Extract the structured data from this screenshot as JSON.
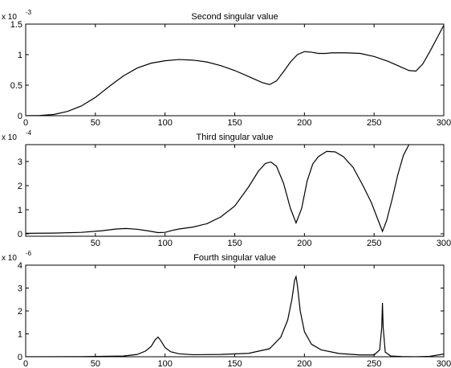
{
  "chart_data": [
    {
      "type": "line",
      "title": "Second singular value",
      "multiplier": {
        "base": "x 10",
        "exponent": "-3"
      },
      "xlabel": "",
      "ylabel": "",
      "xlim": [
        0,
        300
      ],
      "ylim": [
        0,
        1.5
      ],
      "xticks": [
        0,
        50,
        100,
        150,
        200,
        250,
        300
      ],
      "yticks": [
        0,
        0.5,
        1,
        1.5
      ],
      "xtick_labels": [
        "0",
        "50",
        "100",
        "150",
        "200",
        "250",
        "300"
      ],
      "ytick_labels": [
        "0",
        "0.5",
        "1",
        "1.5"
      ],
      "grid": false,
      "series": [
        {
          "x": [
            0,
            10,
            20,
            30,
            40,
            50,
            60,
            70,
            80,
            90,
            100,
            110,
            120,
            130,
            140,
            150,
            160,
            170,
            175,
            180,
            185,
            190,
            195,
            200,
            205,
            210,
            215,
            220,
            230,
            240,
            250,
            260,
            270,
            275,
            280,
            285,
            290,
            300
          ],
          "y": [
            0,
            0.003,
            0.02,
            0.07,
            0.16,
            0.3,
            0.48,
            0.65,
            0.78,
            0.86,
            0.9,
            0.92,
            0.91,
            0.88,
            0.82,
            0.74,
            0.64,
            0.54,
            0.51,
            0.57,
            0.72,
            0.88,
            1.0,
            1.05,
            1.04,
            1.02,
            1.02,
            1.03,
            1.03,
            1.02,
            0.97,
            0.89,
            0.79,
            0.74,
            0.73,
            0.85,
            1.05,
            1.48
          ]
        }
      ]
    },
    {
      "type": "line",
      "title": "Third singular value",
      "multiplier": {
        "base": "x 10",
        "exponent": "-4"
      },
      "xlabel": "",
      "ylabel": "",
      "xlim": [
        0,
        300
      ],
      "ylim": [
        -0.1,
        3.7
      ],
      "xticks": [
        50,
        100,
        150,
        200,
        250,
        300
      ],
      "yticks": [
        0,
        1,
        2,
        3
      ],
      "xtick_labels": [
        "50",
        "100",
        "150",
        "200",
        "250",
        "300"
      ],
      "ytick_labels": [
        "0",
        "1",
        "2",
        "3"
      ],
      "grid": false,
      "series": [
        {
          "x": [
            0,
            20,
            40,
            55,
            65,
            72,
            80,
            88,
            95,
            100,
            105,
            110,
            120,
            130,
            140,
            150,
            160,
            167,
            172,
            176,
            180,
            185,
            190,
            194,
            198,
            202,
            206,
            210,
            216,
            222,
            228,
            235,
            242,
            248,
            253,
            256,
            259,
            263,
            267,
            271,
            275
          ],
          "y": [
            0.02,
            0.03,
            0.06,
            0.13,
            0.2,
            0.22,
            0.19,
            0.12,
            0.05,
            0.06,
            0.14,
            0.2,
            0.28,
            0.42,
            0.7,
            1.15,
            1.95,
            2.6,
            2.92,
            2.98,
            2.8,
            2.1,
            1.05,
            0.45,
            1.05,
            2.2,
            2.9,
            3.2,
            3.42,
            3.4,
            3.2,
            2.75,
            2.0,
            1.3,
            0.55,
            0.1,
            0.55,
            1.45,
            2.45,
            3.25,
            3.7
          ]
        }
      ]
    },
    {
      "type": "line",
      "title": "Fourth singular value",
      "multiplier": {
        "base": "x 10",
        "exponent": "-6"
      },
      "xlabel": "",
      "ylabel": "",
      "xlim": [
        0,
        300
      ],
      "ylim": [
        0,
        4
      ],
      "xticks": [
        0,
        50,
        100,
        150,
        200,
        250,
        300
      ],
      "yticks": [
        0,
        1,
        2,
        3,
        4
      ],
      "xtick_labels": [
        "0",
        "50",
        "100",
        "150",
        "200",
        "250",
        "300"
      ],
      "ytick_labels": [
        "0",
        "1",
        "2",
        "3",
        "4"
      ],
      "grid": false,
      "series": [
        {
          "x": [
            0,
            40,
            70,
            80,
            86,
            90,
            93,
            95,
            97,
            100,
            104,
            110,
            120,
            140,
            160,
            175,
            183,
            188,
            191,
            193,
            194,
            195,
            197,
            200,
            205,
            212,
            225,
            240,
            250,
            254,
            255.5,
            256,
            256.5,
            258,
            262,
            270,
            280,
            290,
            300
          ],
          "y": [
            0,
            0.003,
            0.03,
            0.1,
            0.25,
            0.45,
            0.75,
            0.86,
            0.7,
            0.4,
            0.22,
            0.13,
            0.09,
            0.1,
            0.15,
            0.35,
            0.85,
            1.6,
            2.5,
            3.35,
            3.5,
            3.1,
            2.0,
            1.1,
            0.55,
            0.3,
            0.14,
            0.08,
            0.08,
            0.3,
            1.3,
            2.35,
            1.3,
            0.2,
            0.03,
            0.01,
            0.0,
            0.02,
            0.12
          ]
        }
      ]
    }
  ]
}
